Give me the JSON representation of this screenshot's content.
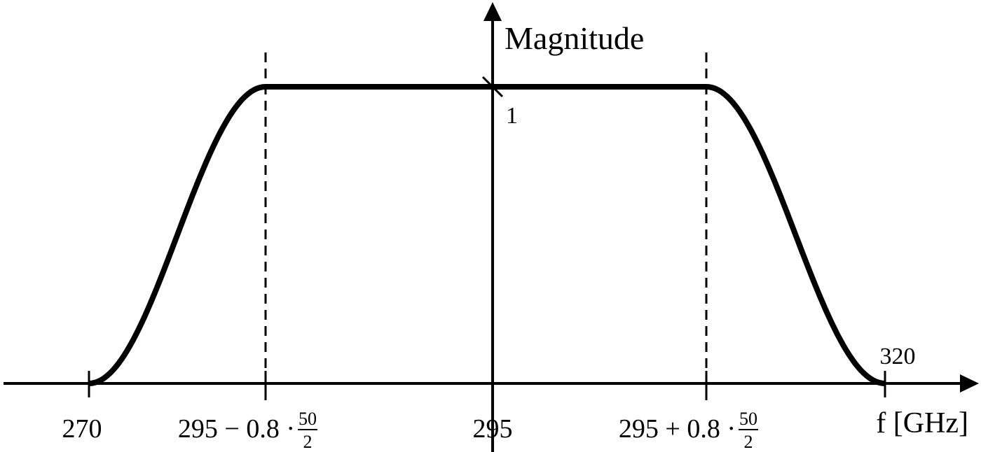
{
  "axes": {
    "y_label": "Magnitude",
    "x_label": "f [GHz]",
    "level_label": "1"
  },
  "ticks": [
    {
      "text": "270"
    },
    {
      "text": "295 − 0.8 ·",
      "numerator": "50",
      "denominator": "2"
    },
    {
      "text": "295"
    },
    {
      "text": "295 + 0.8 ·",
      "numerator": "50",
      "denominator": "2"
    },
    {
      "text": "320"
    }
  ]
}
